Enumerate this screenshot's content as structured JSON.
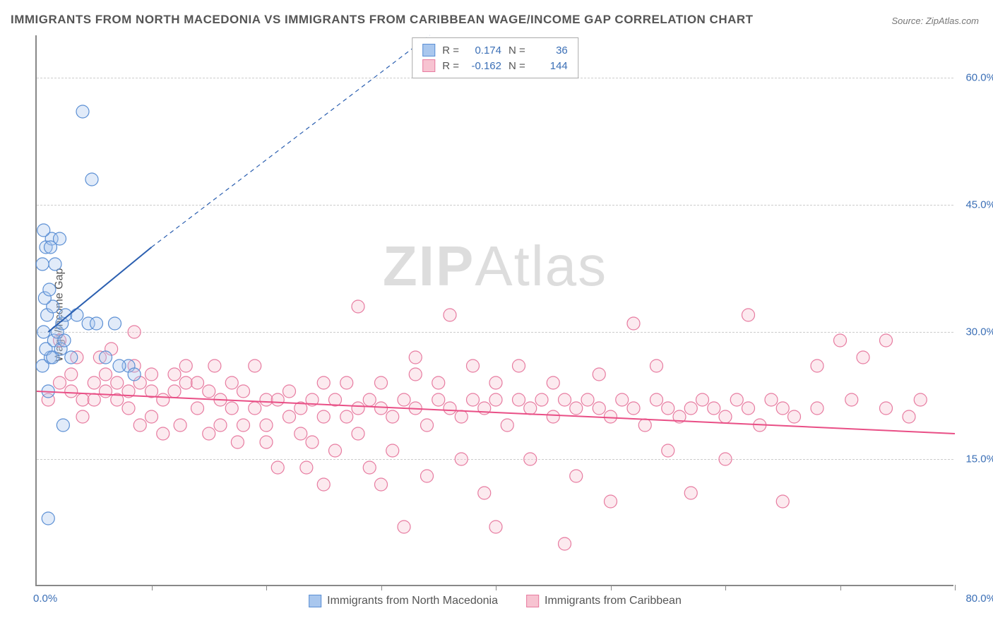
{
  "title": "IMMIGRANTS FROM NORTH MACEDONIA VS IMMIGRANTS FROM CARIBBEAN WAGE/INCOME GAP CORRELATION CHART",
  "source": "Source: ZipAtlas.com",
  "watermark_a": "ZIP",
  "watermark_b": "Atlas",
  "ylabel": "Wage/Income Gap",
  "chart": {
    "type": "scatter",
    "xlim": [
      0,
      80
    ],
    "ylim": [
      0,
      65
    ],
    "xtick_positions": [
      10,
      20,
      30,
      40,
      50,
      60,
      70,
      80
    ],
    "ytick_labels": [
      "15.0%",
      "30.0%",
      "45.0%",
      "60.0%"
    ],
    "ytick_values": [
      15,
      30,
      45,
      60
    ],
    "xaxis_min_label": "0.0%",
    "xaxis_max_label": "80.0%",
    "grid_color": "#cccccc",
    "background_color": "#ffffff",
    "axis_color": "#888888",
    "marker_radius": 9,
    "series": [
      {
        "key": "blue",
        "label": "Immigrants from North Macedonia",
        "fill": "#a9c7ee",
        "stroke": "#5b8fd4",
        "r_value": "0.174",
        "n_value": "36",
        "trend": {
          "x1": 1,
          "y1": 30,
          "x2": 10,
          "y2": 40,
          "dash_x2": 42,
          "dash_y2": 73,
          "color": "#2b5fb0",
          "width": 2
        },
        "points": [
          [
            1,
            23
          ],
          [
            0.5,
            26
          ],
          [
            1.2,
            27
          ],
          [
            0.8,
            28
          ],
          [
            1.5,
            29
          ],
          [
            0.6,
            30
          ],
          [
            1.8,
            30
          ],
          [
            0.9,
            32
          ],
          [
            1.4,
            33
          ],
          [
            2.2,
            31
          ],
          [
            0.7,
            34
          ],
          [
            1.1,
            35
          ],
          [
            2.5,
            32
          ],
          [
            0.5,
            38
          ],
          [
            1.6,
            38
          ],
          [
            0.8,
            40
          ],
          [
            1.3,
            41
          ],
          [
            2.0,
            41
          ],
          [
            0.6,
            42
          ],
          [
            1.2,
            40
          ],
          [
            3.5,
            32
          ],
          [
            4.5,
            31
          ],
          [
            6.0,
            27
          ],
          [
            6.8,
            31
          ],
          [
            8.0,
            26
          ],
          [
            2.3,
            19
          ],
          [
            1.0,
            8
          ],
          [
            4.0,
            56
          ],
          [
            4.8,
            48
          ],
          [
            1.4,
            27
          ],
          [
            2.1,
            28
          ],
          [
            3.0,
            27
          ],
          [
            5.2,
            31
          ],
          [
            7.2,
            26
          ],
          [
            2.4,
            29
          ],
          [
            8.5,
            25
          ]
        ]
      },
      {
        "key": "pink",
        "label": "Immigrants from Caribbean",
        "fill": "#f7c3d1",
        "stroke": "#e77ba0",
        "r_value": "-0.162",
        "n_value": "144",
        "trend": {
          "x1": 0,
          "y1": 23,
          "x2": 80,
          "y2": 18,
          "color": "#e94f86",
          "width": 2
        },
        "points": [
          [
            1,
            22
          ],
          [
            2,
            24
          ],
          [
            2,
            29
          ],
          [
            3,
            23
          ],
          [
            3,
            25
          ],
          [
            3.5,
            27
          ],
          [
            4,
            22
          ],
          [
            4,
            20
          ],
          [
            5,
            24
          ],
          [
            5,
            22
          ],
          [
            5.5,
            27
          ],
          [
            6,
            23
          ],
          [
            6,
            25
          ],
          [
            6.5,
            28
          ],
          [
            7,
            22
          ],
          [
            7,
            24
          ],
          [
            8,
            23
          ],
          [
            8,
            21
          ],
          [
            8.5,
            26
          ],
          [
            8.5,
            30
          ],
          [
            9,
            24
          ],
          [
            9,
            19
          ],
          [
            10,
            23
          ],
          [
            10,
            25
          ],
          [
            10,
            20
          ],
          [
            11,
            22
          ],
          [
            11,
            18
          ],
          [
            12,
            23
          ],
          [
            12,
            25
          ],
          [
            12.5,
            19
          ],
          [
            13,
            24
          ],
          [
            13,
            26
          ],
          [
            14,
            21
          ],
          [
            14,
            24
          ],
          [
            15,
            23
          ],
          [
            15,
            18
          ],
          [
            15.5,
            26
          ],
          [
            16,
            22
          ],
          [
            16,
            19
          ],
          [
            17,
            21
          ],
          [
            17,
            24
          ],
          [
            17.5,
            17
          ],
          [
            18,
            23
          ],
          [
            18,
            19
          ],
          [
            19,
            21
          ],
          [
            19,
            26
          ],
          [
            20,
            19
          ],
          [
            20,
            22
          ],
          [
            20,
            17
          ],
          [
            21,
            22
          ],
          [
            21,
            14
          ],
          [
            22,
            20
          ],
          [
            22,
            23
          ],
          [
            23,
            18
          ],
          [
            23,
            21
          ],
          [
            23.5,
            14
          ],
          [
            24,
            22
          ],
          [
            24,
            17
          ],
          [
            25,
            20
          ],
          [
            25,
            24
          ],
          [
            25,
            12
          ],
          [
            26,
            22
          ],
          [
            26,
            16
          ],
          [
            27,
            20
          ],
          [
            27,
            24
          ],
          [
            28,
            18
          ],
          [
            28,
            21
          ],
          [
            28,
            33
          ],
          [
            29,
            22
          ],
          [
            29,
            14
          ],
          [
            30,
            21
          ],
          [
            30,
            24
          ],
          [
            30,
            12
          ],
          [
            31,
            20
          ],
          [
            31,
            16
          ],
          [
            32,
            22
          ],
          [
            32,
            7
          ],
          [
            33,
            21
          ],
          [
            33,
            25
          ],
          [
            33,
            27
          ],
          [
            34,
            19
          ],
          [
            34,
            13
          ],
          [
            35,
            22
          ],
          [
            35,
            24
          ],
          [
            36,
            21
          ],
          [
            36,
            32
          ],
          [
            37,
            20
          ],
          [
            37,
            15
          ],
          [
            38,
            22
          ],
          [
            38,
            26
          ],
          [
            39,
            21
          ],
          [
            39,
            11
          ],
          [
            40,
            22
          ],
          [
            40,
            24
          ],
          [
            40,
            7
          ],
          [
            41,
            19
          ],
          [
            42,
            22
          ],
          [
            42,
            26
          ],
          [
            43,
            21
          ],
          [
            43,
            15
          ],
          [
            44,
            22
          ],
          [
            45,
            20
          ],
          [
            45,
            24
          ],
          [
            46,
            22
          ],
          [
            46,
            5
          ],
          [
            47,
            21
          ],
          [
            47,
            13
          ],
          [
            48,
            22
          ],
          [
            49,
            21
          ],
          [
            49,
            25
          ],
          [
            50,
            20
          ],
          [
            50,
            10
          ],
          [
            51,
            22
          ],
          [
            52,
            21
          ],
          [
            52,
            31
          ],
          [
            53,
            19
          ],
          [
            54,
            22
          ],
          [
            54,
            26
          ],
          [
            55,
            21
          ],
          [
            55,
            16
          ],
          [
            56,
            20
          ],
          [
            57,
            21
          ],
          [
            57,
            11
          ],
          [
            58,
            22
          ],
          [
            59,
            21
          ],
          [
            60,
            20
          ],
          [
            60,
            15
          ],
          [
            61,
            22
          ],
          [
            62,
            21
          ],
          [
            62,
            32
          ],
          [
            63,
            19
          ],
          [
            64,
            22
          ],
          [
            65,
            21
          ],
          [
            65,
            10
          ],
          [
            66,
            20
          ],
          [
            68,
            21
          ],
          [
            68,
            26
          ],
          [
            70,
            29
          ],
          [
            71,
            22
          ],
          [
            72,
            27
          ],
          [
            74,
            21
          ],
          [
            74,
            29
          ],
          [
            76,
            20
          ],
          [
            77,
            22
          ]
        ]
      }
    ]
  },
  "stats_labels": {
    "r": "R =",
    "n": "N ="
  }
}
